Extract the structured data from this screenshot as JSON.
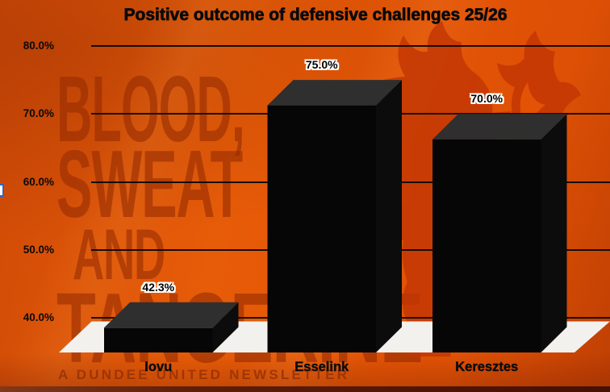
{
  "chart_data": {
    "type": "bar",
    "style": "3d-column",
    "title": "Positive outcome of defensive challenges 25/26",
    "categories": [
      "Iovu",
      "Esselink",
      "Keresztes"
    ],
    "values": [
      42.3,
      75.0,
      70.0
    ],
    "value_labels": [
      "42.3%",
      "75.0%",
      "70.0%"
    ],
    "unit": "%",
    "yticks": [
      80,
      70,
      60,
      50,
      40
    ],
    "ytick_labels": [
      "80.0%",
      "70.0%",
      "60.0%",
      "50.0%",
      "40.0%"
    ],
    "ylim": [
      39,
      82
    ],
    "grid": true,
    "legend": false,
    "xlabel": "",
    "ylabel": ""
  },
  "watermark": {
    "line1": "BLOOD,",
    "line2": "SWEAT",
    "line3": "AND",
    "line4": "TANGERINE",
    "caption": "A DUNDEE UNITED NEWSLETTER"
  },
  "icons": {
    "lion": "rampant-lion-watermark"
  },
  "colors": {
    "background": "#e05505",
    "watermark_text": "#b73d03",
    "lion": "#c43704",
    "lion_accent": "#e55505",
    "floor": "#f2f1ee",
    "bar_front": "#060606",
    "bar_top": "#2f2f2f",
    "bar_side": "#0c0c0c",
    "gridline": "#150d04",
    "title_text": "#0a0a0a",
    "value_label_outline": "#ffffff",
    "bottom_band": "#5f1f08",
    "edge_artifact_border": "#2b66cc"
  }
}
